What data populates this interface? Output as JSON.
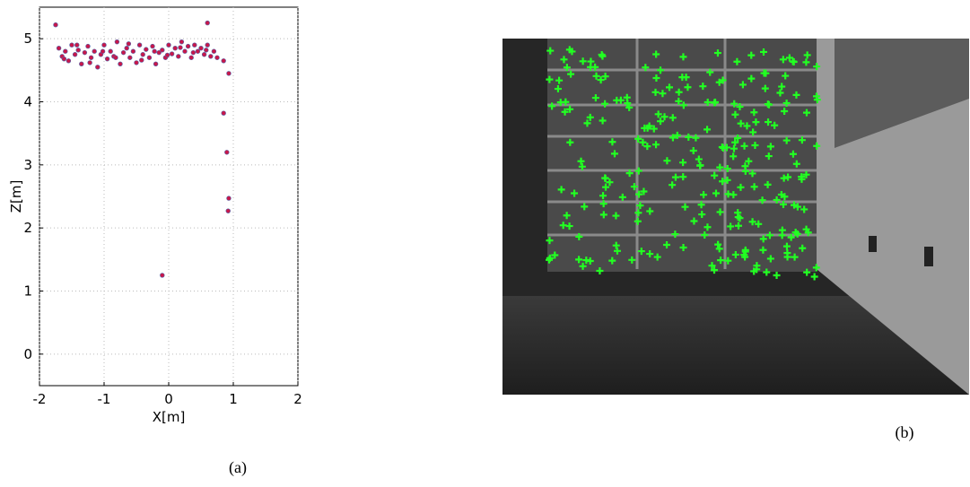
{
  "chart_data": {
    "type": "scatter",
    "xlabel": "X[m]",
    "ylabel": "Z[m]",
    "x": [
      -1.7,
      -1.65,
      -1.6,
      -1.55,
      -1.5,
      -1.45,
      -1.4,
      -1.35,
      -1.3,
      -1.25,
      -1.2,
      -1.15,
      -1.1,
      -1.05,
      -1.0,
      -0.95,
      -0.9,
      -0.85,
      -0.8,
      -0.75,
      -0.7,
      -0.65,
      -0.6,
      -0.55,
      -0.5,
      -0.45,
      -0.4,
      -0.35,
      -0.3,
      -0.25,
      -0.2,
      -0.15,
      -0.1,
      -0.05,
      0,
      0.05,
      0.1,
      0.15,
      0.2,
      0.25,
      0.3,
      0.35,
      0.4,
      0.45,
      0.5,
      0.55,
      0.6,
      0.65,
      0.7,
      0.75,
      -1.62,
      -1.42,
      -1.22,
      -1.02,
      -0.82,
      -0.62,
      -0.42,
      -0.22,
      -0.02,
      0.18,
      0.38,
      0.58,
      -1.75,
      0.6,
      0.85,
      0.9,
      0.93,
      0.92,
      -0.1,
      0.93,
      0.85
    ],
    "y": [
      4.85,
      4.72,
      4.8,
      4.65,
      4.9,
      4.75,
      4.82,
      4.6,
      4.78,
      4.88,
      4.7,
      4.8,
      4.55,
      4.75,
      4.9,
      4.68,
      4.8,
      4.72,
      4.95,
      4.6,
      4.78,
      4.85,
      4.7,
      4.8,
      4.62,
      4.9,
      4.75,
      4.83,
      4.7,
      4.88,
      4.6,
      4.78,
      4.82,
      4.7,
      4.9,
      4.76,
      4.85,
      4.72,
      4.95,
      4.8,
      4.88,
      4.7,
      4.9,
      4.8,
      4.85,
      4.75,
      4.9,
      4.72,
      4.8,
      4.7,
      4.68,
      4.9,
      4.62,
      4.8,
      4.7,
      4.92,
      4.66,
      4.8,
      4.74,
      4.86,
      4.78,
      4.82,
      5.22,
      5.25,
      3.82,
      3.2,
      2.47,
      2.27,
      1.25,
      4.45,
      4.65
    ],
    "color": "#c8174a",
    "xlim": [
      -2,
      2
    ],
    "ylim": [
      -0.5,
      5.5
    ],
    "xticks": [
      -2,
      -1,
      0,
      1,
      2
    ],
    "yticks": [
      0,
      1,
      2,
      3,
      4,
      5
    ],
    "grid": true
  },
  "captions": [
    "(a)",
    "(b)"
  ]
}
